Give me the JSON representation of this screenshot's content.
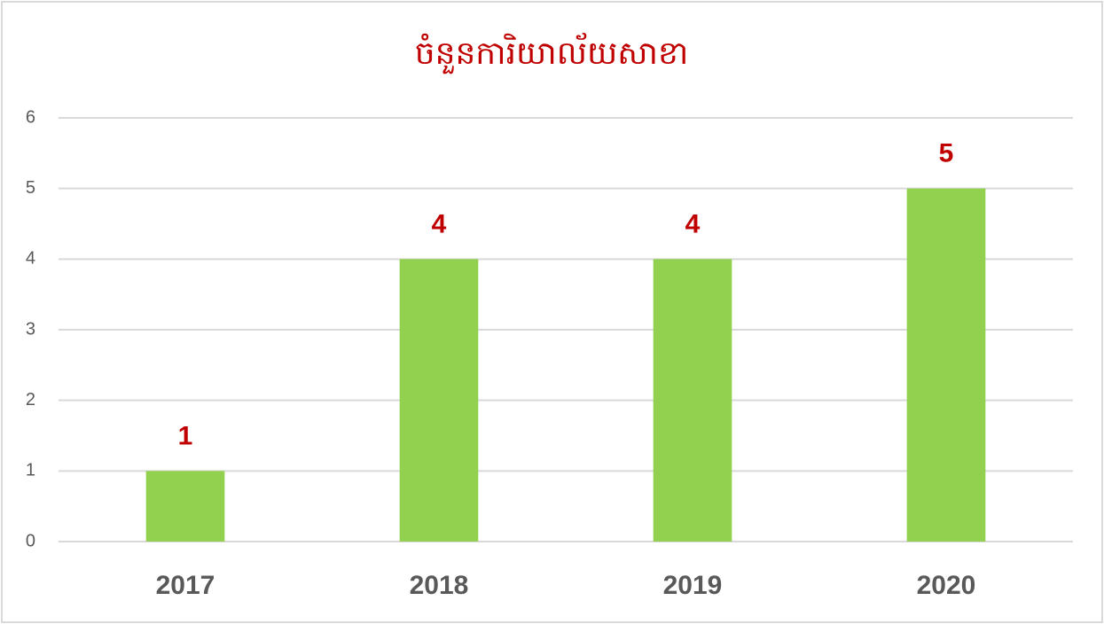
{
  "chart_data": {
    "type": "bar",
    "title": "ចំនួនការិយាល័យសាខា",
    "categories": [
      "2017",
      "2018",
      "2019",
      "2020"
    ],
    "values": [
      1,
      4,
      4,
      5
    ],
    "color": "#92d050",
    "ylim": [
      0,
      6
    ],
    "yticks": [
      0,
      1,
      2,
      3,
      4,
      5,
      6
    ],
    "grid": true
  }
}
